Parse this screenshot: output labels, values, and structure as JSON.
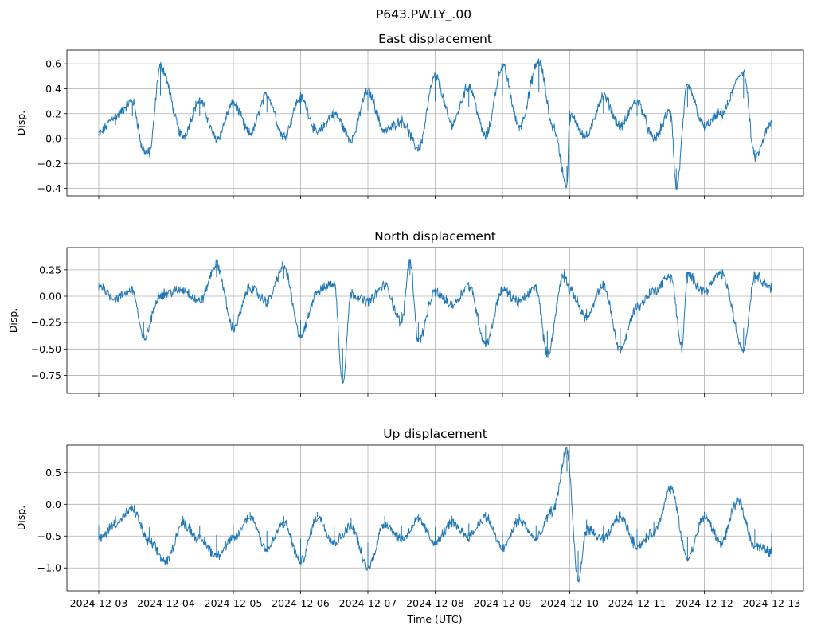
{
  "figure": {
    "suptitle": "P643.PW.LY_.00",
    "xlabel": "Time (UTC)",
    "x_ticks": [
      "2024-12-03",
      "2024-12-04",
      "2024-12-05",
      "2024-12-06",
      "2024-12-07",
      "2024-12-08",
      "2024-12-09",
      "2024-12-10",
      "2024-12-11",
      "2024-12-12",
      "2024-12-13"
    ],
    "series_color": "#1f77b4",
    "grid": true
  },
  "chart_data": [
    {
      "type": "line",
      "title": "East displacement",
      "ylabel": "Disp.",
      "xlim": [
        "2024-12-03",
        "2024-12-13"
      ],
      "ylim": [
        -0.46,
        0.71
      ],
      "y_ticks": [
        "0.6",
        "0.4",
        "0.2",
        "0.0",
        "−0.2",
        "−0.4"
      ],
      "y_tick_values": [
        0.6,
        0.4,
        0.2,
        0.0,
        -0.2,
        -0.4
      ],
      "x": [
        "2024-12-03 00:00",
        "2024-12-03 06:00",
        "2024-12-03 12:00",
        "2024-12-03 16:00",
        "2024-12-03 18:00",
        "2024-12-03 22:00",
        "2024-12-04 06:00",
        "2024-12-04 12:00",
        "2024-12-04 18:00",
        "2024-12-05 00:00",
        "2024-12-05 06:00",
        "2024-12-05 12:00",
        "2024-12-05 18:00",
        "2024-12-06 00:00",
        "2024-12-06 06:00",
        "2024-12-06 12:00",
        "2024-12-06 18:00",
        "2024-12-07 00:00",
        "2024-12-07 06:00",
        "2024-12-07 12:00",
        "2024-12-07 18:00",
        "2024-12-08 00:00",
        "2024-12-08 06:00",
        "2024-12-08 12:00",
        "2024-12-08 18:00",
        "2024-12-09 00:00",
        "2024-12-09 06:00",
        "2024-12-09 13:00",
        "2024-12-09 18:00",
        "2024-12-09 23:00",
        "2024-12-10 00:00",
        "2024-12-10 06:00",
        "2024-12-10 12:00",
        "2024-12-10 18:00",
        "2024-12-11 00:00",
        "2024-12-11 06:00",
        "2024-12-11 12:00",
        "2024-12-11 14:00",
        "2024-12-11 18:00",
        "2024-12-12 00:00",
        "2024-12-12 06:00",
        "2024-12-12 14:00",
        "2024-12-12 18:00",
        "2024-12-13 00:00"
      ],
      "y": [
        0.04,
        0.18,
        0.3,
        -0.1,
        -0.12,
        0.58,
        0.02,
        0.3,
        0.0,
        0.28,
        0.04,
        0.35,
        0.02,
        0.33,
        0.05,
        0.2,
        0.0,
        0.38,
        0.06,
        0.14,
        -0.08,
        0.5,
        0.12,
        0.42,
        0.02,
        0.58,
        0.1,
        0.62,
        0.1,
        -0.37,
        0.18,
        0.02,
        0.34,
        0.1,
        0.3,
        0.0,
        0.22,
        -0.4,
        0.42,
        0.1,
        0.2,
        0.54,
        -0.15,
        0.12
      ]
    },
    {
      "type": "line",
      "title": "North displacement",
      "ylabel": "Disp.",
      "xlim": [
        "2024-12-03",
        "2024-12-13"
      ],
      "ylim": [
        -0.92,
        0.46
      ],
      "y_ticks": [
        "0.25",
        "0.00",
        "−0.25",
        "−0.50",
        "−0.75"
      ],
      "y_tick_values": [
        0.25,
        0.0,
        -0.25,
        -0.5,
        -0.75
      ],
      "x": [
        "2024-12-03 00:00",
        "2024-12-03 06:00",
        "2024-12-03 12:00",
        "2024-12-03 16:00",
        "2024-12-03 22:00",
        "2024-12-04 06:00",
        "2024-12-04 12:00",
        "2024-12-04 18:00",
        "2024-12-05 00:00",
        "2024-12-05 06:00",
        "2024-12-05 12:00",
        "2024-12-05 18:00",
        "2024-12-06 00:00",
        "2024-12-06 06:00",
        "2024-12-06 12:00",
        "2024-12-06 15:00",
        "2024-12-06 18:00",
        "2024-12-07 00:00",
        "2024-12-07 06:00",
        "2024-12-07 12:00",
        "2024-12-07 15:00",
        "2024-12-07 18:00",
        "2024-12-08 00:00",
        "2024-12-08 06:00",
        "2024-12-08 12:00",
        "2024-12-08 18:00",
        "2024-12-09 00:00",
        "2024-12-09 06:00",
        "2024-12-09 12:00",
        "2024-12-09 16:00",
        "2024-12-09 22:00",
        "2024-12-10 00:00",
        "2024-12-10 06:00",
        "2024-12-10 12:00",
        "2024-12-10 18:00",
        "2024-12-11 00:00",
        "2024-12-11 06:00",
        "2024-12-11 12:00",
        "2024-12-11 16:00",
        "2024-12-11 18:00",
        "2024-12-12 00:00",
        "2024-12-12 06:00",
        "2024-12-12 14:00",
        "2024-12-12 18:00",
        "2024-12-13 00:00"
      ],
      "y": [
        0.1,
        -0.02,
        0.06,
        -0.4,
        0.02,
        0.06,
        -0.05,
        0.3,
        -0.3,
        0.08,
        -0.05,
        0.28,
        -0.38,
        0.05,
        0.12,
        -0.82,
        0.02,
        -0.05,
        0.1,
        -0.25,
        0.34,
        -0.42,
        0.04,
        -0.08,
        0.1,
        -0.45,
        0.06,
        -0.05,
        0.08,
        -0.55,
        0.22,
        0.05,
        -0.2,
        0.1,
        -0.5,
        -0.1,
        0.05,
        0.2,
        -0.48,
        0.2,
        0.05,
        0.22,
        -0.5,
        0.2,
        0.08
      ]
    },
    {
      "type": "line",
      "title": "Up displacement",
      "ylabel": "Disp.",
      "xlim": [
        "2024-12-03",
        "2024-12-13"
      ],
      "ylim": [
        -1.36,
        0.93
      ],
      "y_ticks": [
        "0.5",
        "0.0",
        "−0.5",
        "−1.0"
      ],
      "y_tick_values": [
        0.5,
        0.0,
        -0.5,
        -1.0
      ],
      "x": [
        "2024-12-03 00:00",
        "2024-12-03 06:00",
        "2024-12-03 12:00",
        "2024-12-03 18:00",
        "2024-12-04 00:00",
        "2024-12-04 06:00",
        "2024-12-04 12:00",
        "2024-12-04 18:00",
        "2024-12-05 00:00",
        "2024-12-05 06:00",
        "2024-12-05 12:00",
        "2024-12-05 18:00",
        "2024-12-06 00:00",
        "2024-12-06 06:00",
        "2024-12-06 12:00",
        "2024-12-06 18:00",
        "2024-12-07 00:00",
        "2024-12-07 06:00",
        "2024-12-07 12:00",
        "2024-12-07 18:00",
        "2024-12-08 00:00",
        "2024-12-08 06:00",
        "2024-12-08 12:00",
        "2024-12-08 18:00",
        "2024-12-09 00:00",
        "2024-12-09 06:00",
        "2024-12-09 12:00",
        "2024-12-09 18:00",
        "2024-12-09 23:00",
        "2024-12-10 03:00",
        "2024-12-10 06:00",
        "2024-12-10 12:00",
        "2024-12-10 18:00",
        "2024-12-11 00:00",
        "2024-12-11 06:00",
        "2024-12-11 12:00",
        "2024-12-11 18:00",
        "2024-12-12 00:00",
        "2024-12-12 06:00",
        "2024-12-12 12:00",
        "2024-12-12 18:00",
        "2024-12-13 00:00"
      ],
      "y": [
        -0.55,
        -0.3,
        -0.08,
        -0.6,
        -0.9,
        -0.3,
        -0.55,
        -0.8,
        -0.55,
        -0.2,
        -0.7,
        -0.3,
        -0.9,
        -0.2,
        -0.6,
        -0.35,
        -1.0,
        -0.3,
        -0.55,
        -0.25,
        -0.6,
        -0.3,
        -0.5,
        -0.2,
        -0.7,
        -0.25,
        -0.55,
        -0.1,
        0.85,
        -1.22,
        -0.4,
        -0.55,
        -0.2,
        -0.65,
        -0.45,
        0.25,
        -0.85,
        -0.2,
        -0.6,
        0.05,
        -0.65,
        -0.75
      ]
    }
  ]
}
